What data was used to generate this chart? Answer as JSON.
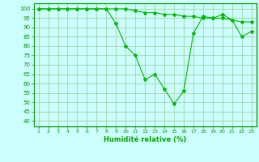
{
  "x": [
    1,
    2,
    3,
    4,
    5,
    6,
    7,
    8,
    9,
    10,
    11,
    12,
    13,
    14,
    15,
    16,
    17,
    18,
    19,
    20,
    21,
    22,
    23
  ],
  "series": [
    [
      100,
      100,
      100,
      100,
      100,
      100,
      100,
      100,
      100,
      100,
      99,
      98,
      98,
      97,
      97,
      96,
      96,
      95,
      95,
      95,
      94,
      93,
      93
    ],
    [
      100,
      100,
      100,
      100,
      100,
      100,
      100,
      100,
      92,
      80,
      75,
      62,
      65,
      57,
      49,
      56,
      87,
      96,
      95,
      97,
      94,
      85,
      88
    ]
  ],
  "line_color": "#00bb00",
  "marker": "*",
  "marker_size": 3,
  "bg_color": "#ccffff",
  "grid_color": "#99cc99",
  "axis_color": "#009900",
  "tick_color": "#009900",
  "xlabel": "Humidité relative (%)",
  "xlabel_color": "#00aa00",
  "ylim": [
    37,
    103
  ],
  "yticks": [
    40,
    45,
    50,
    55,
    60,
    65,
    70,
    75,
    80,
    85,
    90,
    95,
    100
  ],
  "xlim": [
    0.5,
    23.5
  ],
  "xticks": [
    1,
    2,
    3,
    4,
    5,
    6,
    7,
    8,
    9,
    10,
    11,
    12,
    13,
    14,
    15,
    16,
    17,
    18,
    19,
    20,
    21,
    22,
    23
  ],
  "figsize": [
    3.2,
    2.0
  ],
  "dpi": 100
}
